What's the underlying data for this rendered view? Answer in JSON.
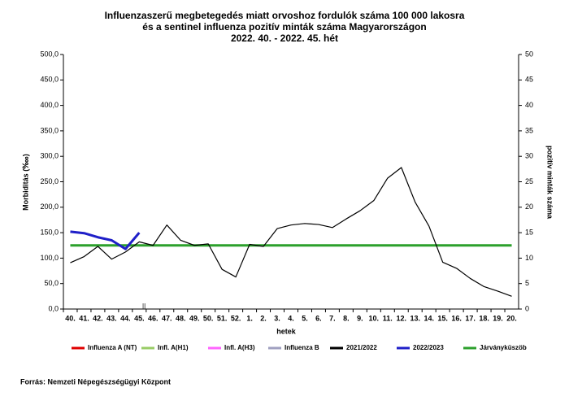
{
  "chart_data": {
    "type": "line",
    "title": [
      "Influenzaszerű megbetegedés miatt orvoshoz fordulók száma 100 000 lakosra",
      "és a sentinel influenza pozitív minták száma Magyarországon",
      "2022. 40. - 2022. 45. hét"
    ],
    "ylabel": "Morbiditás (‱)",
    "y2label": "pozitív minták száma",
    "xlabel": "hetek",
    "source": "Forrás: Nemzeti Népegészségügyi Központ",
    "categories": [
      "40.",
      "41.",
      "42.",
      "43.",
      "44.",
      "45.",
      "46.",
      "47.",
      "48.",
      "49.",
      "50.",
      "51.",
      "52.",
      "1.",
      "2.",
      "3.",
      "4.",
      "5.",
      "6.",
      "7.",
      "8.",
      "9.",
      "10.",
      "11.",
      "12.",
      "13.",
      "14.",
      "15.",
      "16.",
      "17.",
      "18.",
      "19.",
      "20."
    ],
    "ylim": [
      0,
      500
    ],
    "yticks": [
      {
        "value": 0,
        "label": "0,0"
      },
      {
        "value": 50,
        "label": "50,0"
      },
      {
        "value": 100,
        "label": "100,0"
      },
      {
        "value": 150,
        "label": "150,0"
      },
      {
        "value": 200,
        "label": "200,0"
      },
      {
        "value": 250,
        "label": "250,0"
      },
      {
        "value": 300,
        "label": "300,0"
      },
      {
        "value": 350,
        "label": "350,0"
      },
      {
        "value": 400,
        "label": "400,0"
      },
      {
        "value": 450,
        "label": "450,0"
      },
      {
        "value": 500,
        "label": "500,0"
      }
    ],
    "y2lim": [
      0,
      50
    ],
    "y2ticks": [
      0,
      5,
      10,
      15,
      20,
      25,
      30,
      35,
      40,
      45,
      50
    ],
    "series": [
      {
        "name": "Influenza A (NT)",
        "color": "#e00000",
        "axis": "y2",
        "values": [
          null,
          null,
          null,
          null,
          null,
          null,
          null,
          null,
          null,
          null,
          null,
          null,
          null,
          null,
          null,
          null,
          null,
          null,
          null,
          null,
          null,
          null,
          null,
          null,
          null,
          null,
          null,
          null,
          null,
          null,
          null,
          null,
          null
        ]
      },
      {
        "name": "Infl. A(H1)",
        "color": "#99cc66",
        "axis": "y2",
        "values": [
          null,
          null,
          null,
          null,
          null,
          null,
          null,
          null,
          null,
          null,
          null,
          null,
          null,
          null,
          null,
          null,
          null,
          null,
          null,
          null,
          null,
          null,
          null,
          null,
          null,
          null,
          null,
          null,
          null,
          null,
          null,
          null,
          null
        ]
      },
      {
        "name": "Infl. A(H3)",
        "color": "#ff66ff",
        "axis": "y2",
        "values": [
          null,
          null,
          null,
          null,
          null,
          null,
          null,
          null,
          null,
          null,
          null,
          null,
          null,
          null,
          null,
          null,
          null,
          null,
          null,
          null,
          null,
          null,
          null,
          null,
          null,
          null,
          null,
          null,
          null,
          null,
          null,
          null,
          null
        ]
      },
      {
        "name": "Influenza B",
        "color": "#a0a0c0",
        "axis": "y2",
        "values": [
          null,
          null,
          null,
          null,
          null,
          null,
          null,
          null,
          null,
          null,
          null,
          null,
          null,
          null,
          null,
          null,
          null,
          null,
          null,
          null,
          null,
          null,
          null,
          null,
          null,
          null,
          null,
          null,
          null,
          null,
          null,
          null,
          null
        ]
      },
      {
        "name": "2021/2022",
        "color": "#000000",
        "values": [
          91,
          103,
          123,
          98,
          112,
          132,
          125,
          165,
          135,
          125,
          128,
          78,
          63,
          127,
          123,
          158,
          165,
          168,
          166,
          160,
          177,
          193,
          213,
          257,
          278,
          210,
          163,
          92,
          80,
          60,
          44,
          35,
          25
        ]
      },
      {
        "name": "2022/2023",
        "color": "#1f1fc8",
        "values": [
          152,
          149,
          141,
          135,
          118,
          150,
          null,
          null,
          null,
          null,
          null,
          null,
          null,
          null,
          null,
          null,
          null,
          null,
          null,
          null,
          null,
          null,
          null,
          null,
          null,
          null,
          null,
          null,
          null,
          null,
          null,
          null,
          null
        ]
      },
      {
        "name": "Járványküszöb",
        "color": "#2ca02c",
        "values": [
          125,
          125,
          125,
          125,
          125,
          125,
          125,
          125,
          125,
          125,
          125,
          125,
          125,
          125,
          125,
          125,
          125,
          125,
          125,
          125,
          125,
          125,
          125,
          125,
          125,
          125,
          125,
          125,
          125,
          125,
          125,
          125,
          125
        ]
      }
    ]
  }
}
